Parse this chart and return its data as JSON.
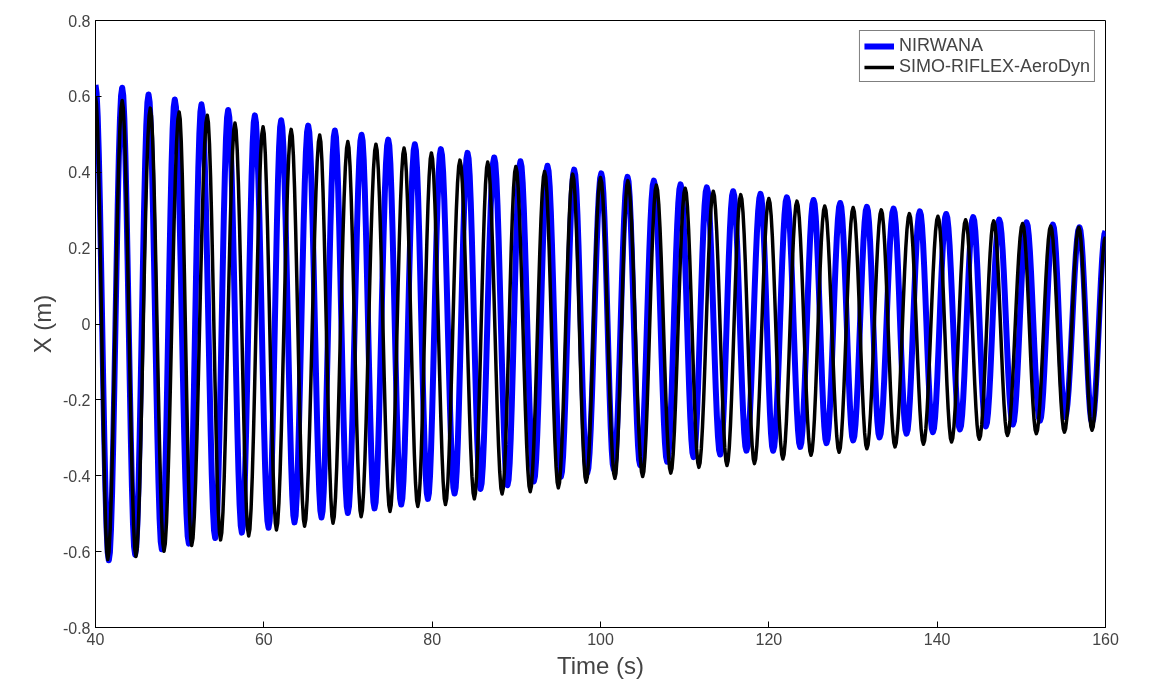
{
  "chart_data": {
    "type": "line",
    "xlabel": "Time (s)",
    "ylabel": "X (m)",
    "xlim": [
      40,
      160
    ],
    "ylim": [
      -0.8,
      0.8
    ],
    "xticks": [
      40,
      60,
      80,
      100,
      120,
      140,
      160
    ],
    "yticks": [
      -0.8,
      -0.6,
      -0.4,
      -0.2,
      0,
      0.2,
      0.4,
      0.6,
      0.8
    ],
    "grid": false,
    "legend": "top right",
    "line_style": "solid",
    "marker": "none",
    "series": [
      {
        "name": "NIRWANA",
        "color": "#0000ff",
        "x": [
          40,
          41.58,
          43.17,
          44.71,
          46.3,
          47.88,
          49.42,
          51.09,
          52.59,
          54.22,
          55.76,
          57.39,
          58.93,
          60.56,
          62.06,
          63.64,
          65.27,
          66.85,
          68.44,
          69.98,
          71.61,
          73.15,
          74.78,
          76.32,
          77.94,
          79.49,
          81.03,
          82.66,
          84.2,
          85.74,
          87.37,
          88.95,
          90.49,
          92.08,
          93.7,
          95.29,
          96.87,
          98.42,
          100.09,
          101.58,
          103.21,
          104.71,
          106.34,
          107.92,
          109.51,
          111.05,
          112.63,
          114.22,
          115.76,
          117.34,
          119.01,
          120.51,
          122.14,
          123.73,
          125.31,
          126.85,
          128.48,
          130.02,
          131.65,
          133.15,
          134.82,
          136.36,
          137.94,
          139.49,
          141.07,
          142.7,
          144.28,
          145.78,
          147.37,
          148.99,
          150.62,
          152.21,
          153.75,
          155.2,
          156.9,
          158.4,
          160
        ],
        "values": [
          0.63,
          -0.623,
          0.623,
          -0.608,
          0.605,
          -0.594,
          0.592,
          -0.579,
          0.579,
          -0.564,
          0.564,
          -0.55,
          0.55,
          -0.537,
          0.537,
          -0.523,
          0.523,
          -0.51,
          0.51,
          -0.498,
          0.499,
          -0.486,
          0.486,
          -0.476,
          0.474,
          -0.461,
          0.461,
          -0.447,
          0.451,
          -0.435,
          0.439,
          -0.425,
          0.429,
          -0.415,
          0.417,
          -0.403,
          0.407,
          -0.393,
          0.397,
          -0.383,
          0.388,
          -0.372,
          0.378,
          -0.363,
          0.368,
          -0.351,
          0.36,
          -0.344,
          0.35,
          -0.334,
          0.343,
          -0.334,
          0.334,
          -0.324,
          0.327,
          -0.314,
          0.319,
          -0.307,
          0.309,
          -0.299,
          0.304,
          -0.289,
          0.297,
          -0.285,
          0.29,
          -0.278,
          0.282,
          -0.27,
          0.275,
          -0.265,
          0.268,
          -0.255,
          0.262,
          -0.245,
          0.255,
          -0.26,
          0.245
        ]
      },
      {
        "name": "SIMO-RIFLEX-AeroDyn",
        "color": "#000000",
        "x": [
          40,
          41.46,
          43.17,
          44.8,
          46.51,
          48.14,
          49.94,
          51.43,
          53.28,
          54.86,
          56.57,
          58.2,
          59.91,
          61.5,
          63.25,
          64.84,
          66.64,
          68.22,
          69.98,
          71.56,
          73.32,
          74.99,
          76.66,
          78.29,
          79.91,
          81.58,
          83.3,
          85.01,
          86.6,
          88.31,
          89.94,
          91.65,
          93.36,
          94.99,
          96.7,
          98.29,
          100.0,
          101.71,
          103.25,
          105.01,
          106.64,
          108.35,
          110.06,
          111.69,
          113.4,
          115.03,
          116.66,
          118.29,
          120.0,
          121.67,
          123.34,
          125.01,
          126.64,
          128.35,
          130.02,
          131.65,
          133.36,
          134.99,
          136.7,
          138.37,
          140.09,
          141.71,
          143.38,
          145.01,
          146.72,
          148.35,
          150.15,
          151.78,
          153.49,
          155.12,
          156.83,
          158.4,
          160
        ],
        "values": [
          0.6,
          -0.621,
          0.589,
          -0.613,
          0.569,
          -0.599,
          0.559,
          -0.584,
          0.55,
          -0.569,
          0.53,
          -0.559,
          0.52,
          -0.543,
          0.513,
          -0.533,
          0.498,
          -0.525,
          0.481,
          -0.508,
          0.474,
          -0.494,
          0.464,
          -0.481,
          0.451,
          -0.476,
          0.432,
          -0.461,
          0.427,
          -0.448,
          0.415,
          -0.442,
          0.402,
          -0.432,
          0.395,
          -0.417,
          0.386,
          -0.407,
          0.378,
          -0.402,
          0.366,
          -0.393,
          0.358,
          -0.378,
          0.35,
          -0.373,
          0.341,
          -0.368,
          0.331,
          -0.356,
          0.324,
          -0.346,
          0.311,
          -0.338,
          0.307,
          -0.329,
          0.301,
          -0.324,
          0.291,
          -0.317,
          0.284,
          -0.311,
          0.275,
          -0.304,
          0.272,
          -0.294,
          0.265,
          -0.289,
          0.258,
          -0.285,
          0.255,
          -0.28,
          0.23
        ]
      }
    ]
  }
}
